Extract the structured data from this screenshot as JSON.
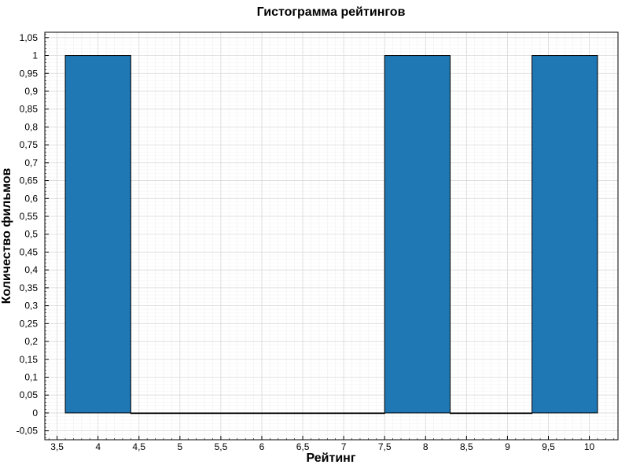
{
  "chart_data": {
    "type": "bar",
    "title": "Гистограмма рейтингов",
    "xlabel": "Рейтинг",
    "ylabel": "Количество фильмов",
    "xlim": [
      3.35,
      10.35
    ],
    "ylim": [
      -0.075,
      1.065
    ],
    "grid": true,
    "bar_color": "#1f77b4",
    "bar_edge_color": "#000000",
    "bins": [
      {
        "start": 3.6,
        "end": 4.4,
        "value": 1
      },
      {
        "start": 4.4,
        "end": 7.5,
        "value": 0
      },
      {
        "start": 7.5,
        "end": 8.3,
        "value": 1
      },
      {
        "start": 8.3,
        "end": 9.3,
        "value": 0
      },
      {
        "start": 9.3,
        "end": 10.1,
        "value": 1
      }
    ],
    "x_ticks": [
      "3,5",
      "4",
      "4,5",
      "5",
      "5,5",
      "6",
      "6,5",
      "7",
      "7,5",
      "8",
      "8,5",
      "9",
      "9,5",
      "10"
    ],
    "y_ticks": [
      "-0,05",
      "0",
      "0,05",
      "0,1",
      "0,15",
      "0,2",
      "0,25",
      "0,3",
      "0,35",
      "0,4",
      "0,45",
      "0,5",
      "0,55",
      "0,6",
      "0,65",
      "0,7",
      "0,75",
      "0,8",
      "0,85",
      "0,9",
      "0,95",
      "1",
      "1,05"
    ]
  }
}
